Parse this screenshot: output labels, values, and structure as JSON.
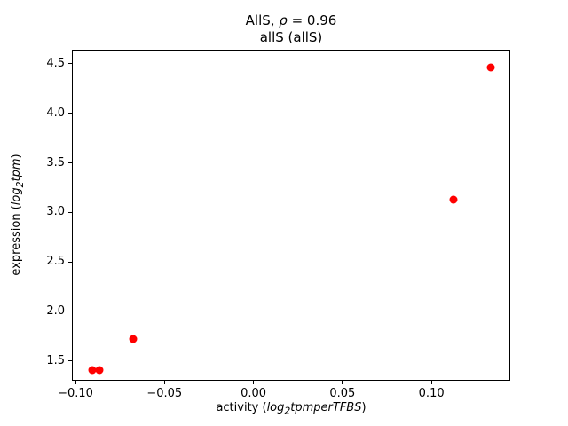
{
  "chart_data": {
    "type": "scatter",
    "title1_pre": "AllS, ",
    "title1_rho": "ρ",
    "title1_post": " = 0.96",
    "title_line2": "allS (allS)",
    "xlabel_parts": {
      "pre": "activity (",
      "func": "log",
      "sub": "2",
      "arg": "tpmperTFBS",
      "post": ")"
    },
    "ylabel_parts": {
      "pre": "expression (",
      "func": "log",
      "sub": "2",
      "arg": "tpm",
      "post": ")"
    },
    "xlim": [
      -0.102,
      0.1443
    ],
    "ylim": [
      1.303,
      4.643
    ],
    "xticks": [
      {
        "value": -0.1,
        "label": "−0.10"
      },
      {
        "value": -0.05,
        "label": "−0.05"
      },
      {
        "value": 0.0,
        "label": "0.00"
      },
      {
        "value": 0.05,
        "label": "0.05"
      },
      {
        "value": 0.1,
        "label": "0.10"
      }
    ],
    "yticks": [
      {
        "value": 1.5,
        "label": "1.5"
      },
      {
        "value": 2.0,
        "label": "2.0"
      },
      {
        "value": 2.5,
        "label": "2.5"
      },
      {
        "value": 3.0,
        "label": "3.0"
      },
      {
        "value": 3.5,
        "label": "3.5"
      },
      {
        "value": 4.0,
        "label": "4.0"
      },
      {
        "value": 4.5,
        "label": "4.5"
      }
    ],
    "marker_color": "#ff0000",
    "points": [
      {
        "x": -0.091,
        "y": 1.42
      },
      {
        "x": -0.087,
        "y": 1.42
      },
      {
        "x": -0.068,
        "y": 1.73
      },
      {
        "x": 0.112,
        "y": 3.14
      },
      {
        "x": 0.133,
        "y": 4.47
      }
    ],
    "legend": null,
    "grid": false
  }
}
